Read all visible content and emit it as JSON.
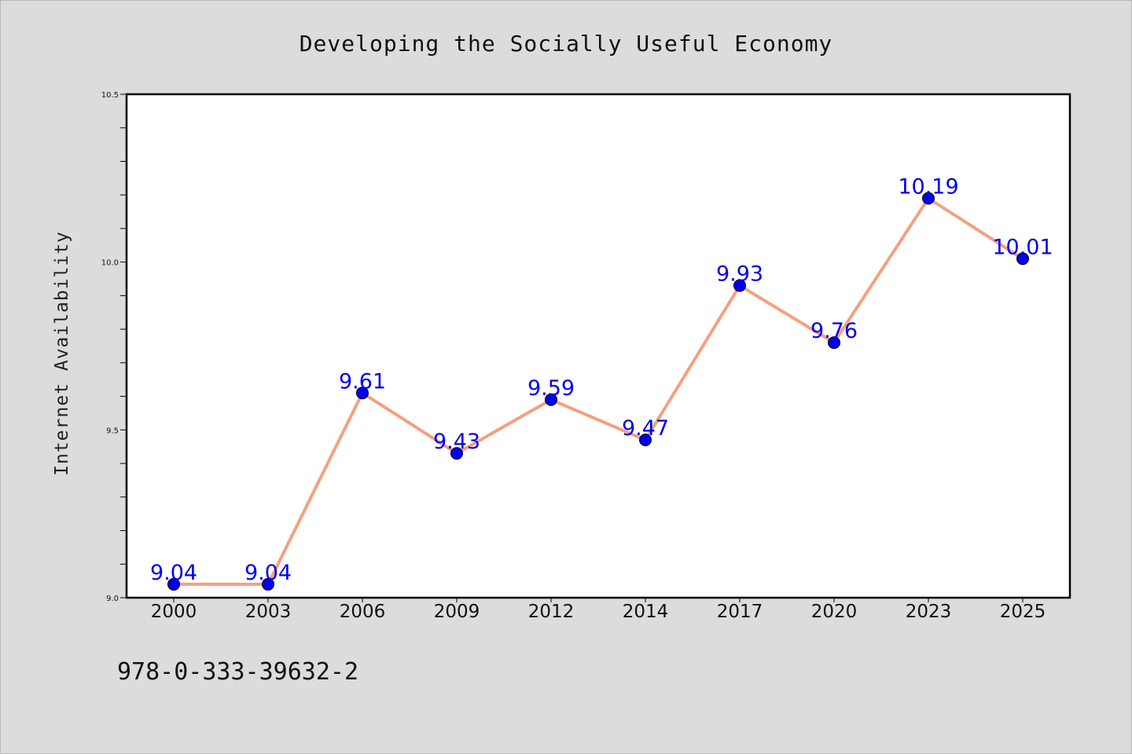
{
  "chart_data": {
    "type": "line",
    "title": "Developing the Socially Useful Economy",
    "xlabel": "",
    "ylabel": "Internet Availability",
    "categories": [
      "2000",
      "2003",
      "2006",
      "2009",
      "2012",
      "2014",
      "2017",
      "2020",
      "2023",
      "2025"
    ],
    "series": [
      {
        "values": [
          9.04,
          9.04,
          9.61,
          9.43,
          9.59,
          9.47,
          9.93,
          9.76,
          10.19,
          10.01
        ]
      }
    ],
    "data_labels": [
      "9.04",
      "9.04",
      "9.61",
      "9.43",
      "9.59",
      "9.47",
      "9.93",
      "9.76",
      "10.19",
      "10.01"
    ],
    "ylim": [
      9.0,
      10.5
    ],
    "yticks_major": [
      9.0,
      9.5,
      10.0,
      10.5
    ],
    "ytick_labels": [
      "9.0",
      "9.5",
      "10.0",
      "10.5"
    ],
    "yticks_minor_step": 0.1,
    "grid": false,
    "legend": "none",
    "colors": {
      "line": "#f4a07f",
      "marker": "#0000ee",
      "label": "#0000ee",
      "plot_background": "#ffffff",
      "figure_background": "#dcdcdc"
    }
  },
  "caption": "978-0-333-39632-2"
}
